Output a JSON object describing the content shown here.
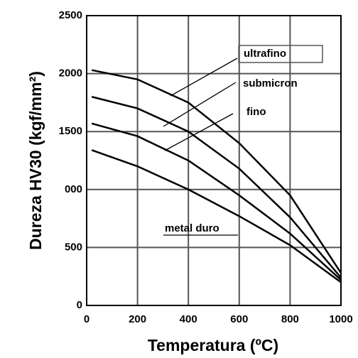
{
  "chart_data": {
    "type": "line",
    "x_label": "Temperatura (ºC)",
    "y_label": "Dureza HV30 (kgf/mm²)",
    "x": [
      20,
      200,
      400,
      600,
      800,
      1000
    ],
    "series": [
      {
        "name": "ultrafino",
        "color": "#000000",
        "values": [
          2030,
          1950,
          1750,
          1400,
          950,
          280
        ]
      },
      {
        "name": "submicron",
        "color": "#000000",
        "values": [
          1800,
          1700,
          1500,
          1180,
          760,
          240
        ]
      },
      {
        "name": "fino",
        "color": "#000000",
        "values": [
          1570,
          1460,
          1250,
          950,
          620,
          220
        ]
      },
      {
        "name": "metal duro",
        "color": "#000000",
        "values": [
          1340,
          1200,
          1000,
          770,
          520,
          200
        ]
      }
    ],
    "xlim": [
      0,
      1000
    ],
    "xticks": [
      0,
      200,
      400,
      600,
      800,
      1000
    ],
    "ylim": [
      0,
      2500
    ],
    "yticks": [
      0,
      500,
      {
        "value": 1000,
        "label": "000"
      },
      1500,
      2000,
      2500
    ],
    "grid": true
  }
}
